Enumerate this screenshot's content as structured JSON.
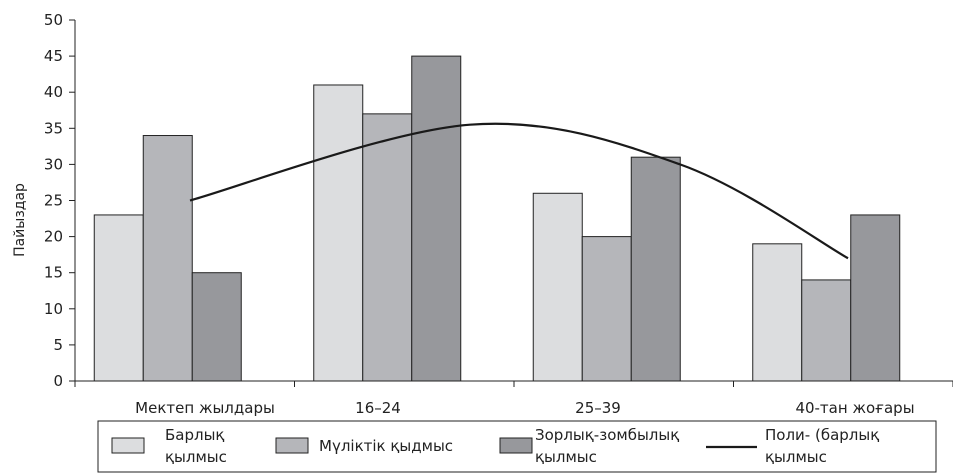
{
  "chart_data": {
    "type": "bar",
    "ylabel": "Пайыздар",
    "ylim": [
      0,
      50
    ],
    "yticks": [
      0,
      5,
      10,
      15,
      20,
      25,
      30,
      35,
      40,
      45,
      50
    ],
    "categories": [
      "Мектеп жылдары",
      "16–24",
      "25–39",
      "40-тан жоғары"
    ],
    "series": [
      {
        "name": "Барлық қылмыс",
        "values": [
          23,
          41,
          26,
          19
        ],
        "color": "#dcdddf"
      },
      {
        "name": "Мүліктік қыдмыс",
        "values": [
          34,
          37,
          20,
          14
        ],
        "color": "#b5b6ba"
      },
      {
        "name": "Зорлық-зомбылық қылмыс",
        "values": [
          15,
          45,
          31,
          23
        ],
        "color": "#97989c"
      }
    ],
    "trendline": {
      "name": "Поли- (барлық қылмыс",
      "type": "polynomial",
      "values": [
        25.0,
        35.5,
        30.0,
        17.0
      ],
      "color": "#1a1a1a"
    },
    "legend": {
      "placement": "bottom",
      "labels": [
        [
          "Барлық",
          "қылмыс"
        ],
        [
          "Мүліктік қыдмыс"
        ],
        [
          "Зорлық-зомбылық",
          "қылмыс"
        ],
        [
          "Поли- (барлық",
          "қылмыс"
        ]
      ]
    },
    "grid": false
  }
}
